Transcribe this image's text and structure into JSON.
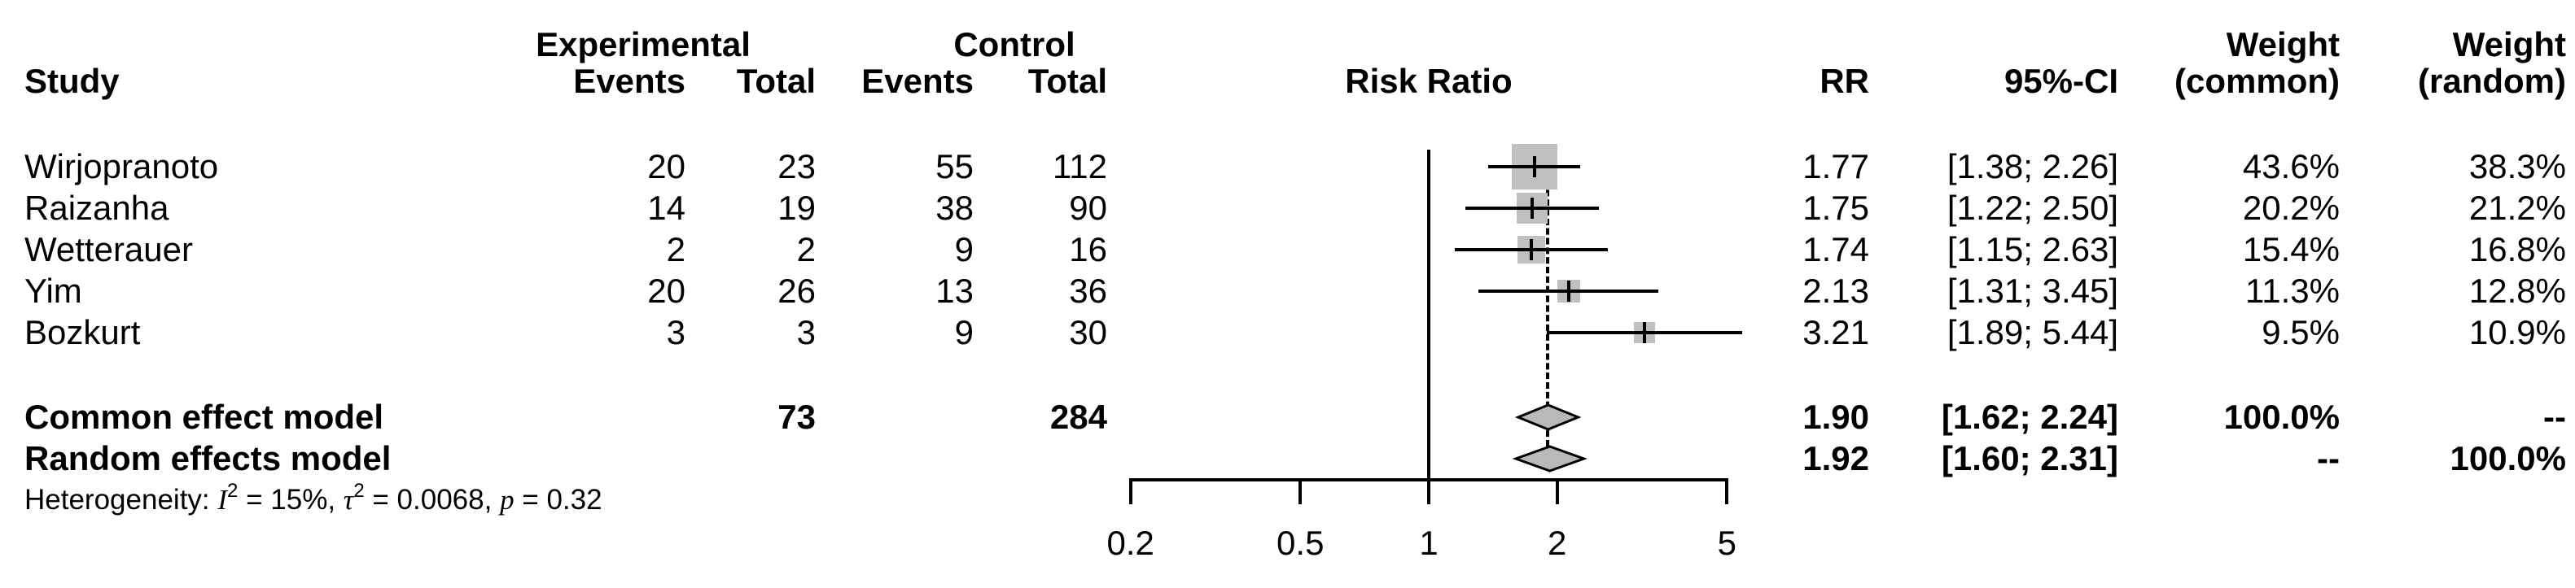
{
  "chart_data": {
    "type": "forest",
    "headers": {
      "study": "Study",
      "experimental": "Experimental",
      "control": "Control",
      "events": "Events",
      "total": "Total",
      "plot_title": "Risk Ratio",
      "rr": "RR",
      "ci": "95%-CI",
      "weight": "Weight",
      "common": "(common)",
      "random": "(random)"
    },
    "studies": [
      {
        "study": "Wirjopranoto",
        "exp_events": "20",
        "exp_total": "23",
        "ctrl_events": "55",
        "ctrl_total": "112",
        "rr": 1.77,
        "ci_low": 1.38,
        "ci_high": 2.26,
        "rr_text": "1.77",
        "ci_text": "[1.38; 2.26]",
        "weight_common": "43.6%",
        "weight_random": "38.3%",
        "weight_common_value": 43.6
      },
      {
        "study": "Raizanha",
        "exp_events": "14",
        "exp_total": "19",
        "ctrl_events": "38",
        "ctrl_total": "90",
        "rr": 1.75,
        "ci_low": 1.22,
        "ci_high": 2.5,
        "rr_text": "1.75",
        "ci_text": "[1.22; 2.50]",
        "weight_common": "20.2%",
        "weight_random": "21.2%",
        "weight_common_value": 20.2
      },
      {
        "study": "Wetterauer",
        "exp_events": "2",
        "exp_total": "2",
        "ctrl_events": "9",
        "ctrl_total": "16",
        "rr": 1.74,
        "ci_low": 1.15,
        "ci_high": 2.63,
        "rr_text": "1.74",
        "ci_text": "[1.15; 2.63]",
        "weight_common": "15.4%",
        "weight_random": "16.8%",
        "weight_common_value": 15.4
      },
      {
        "study": "Yim",
        "exp_events": "20",
        "exp_total": "26",
        "ctrl_events": "13",
        "ctrl_total": "36",
        "rr": 2.13,
        "ci_low": 1.31,
        "ci_high": 3.45,
        "rr_text": "2.13",
        "ci_text": "[1.31; 3.45]",
        "weight_common": "11.3%",
        "weight_random": "12.8%",
        "weight_common_value": 11.3
      },
      {
        "study": "Bozkurt",
        "exp_events": "3",
        "exp_total": "3",
        "ctrl_events": "9",
        "ctrl_total": "30",
        "rr": 3.21,
        "ci_low": 1.89,
        "ci_high": 5.44,
        "rr_text": "3.21",
        "ci_text": "[1.89; 5.44]",
        "weight_common": "9.5%",
        "weight_random": "10.9%",
        "weight_common_value": 9.5
      }
    ],
    "summaries": [
      {
        "label": "Common effect model",
        "exp_total": "73",
        "ctrl_total": "284",
        "rr": 1.9,
        "ci_low": 1.62,
        "ci_high": 2.24,
        "rr_text": "1.90",
        "ci_text": "[1.62; 2.24]",
        "weight_common": "100.0%",
        "weight_random": "--"
      },
      {
        "label": "Random effects model",
        "exp_total": "",
        "ctrl_total": "",
        "rr": 1.92,
        "ci_low": 1.6,
        "ci_high": 2.31,
        "rr_text": "1.92",
        "ci_text": "[1.60; 2.31]",
        "weight_common": "--",
        "weight_random": "100.0%"
      }
    ],
    "heterogeneity": {
      "prefix": "Heterogeneity: ",
      "i_symbol": "I",
      "i_sup": "2",
      "i_rest": " = 15%, ",
      "tau_symbol": "τ",
      "tau_sup": "2",
      "tau_rest": " = 0.0068, ",
      "p_symbol": "p",
      "p_rest": " = 0.32"
    },
    "axis": {
      "scale": "log",
      "ticks": [
        0.2,
        0.5,
        1,
        2,
        5
      ],
      "tick_labels": [
        "0.2",
        "0.5",
        "1",
        "2",
        "5"
      ],
      "null_value": 1,
      "pooled_line_at": 1.9,
      "xlim": [
        0.2,
        5
      ]
    },
    "colors": {
      "square": "#c0c0c0",
      "diamond": "#b9b9b9",
      "line": "#000000",
      "text": "#000000"
    }
  }
}
